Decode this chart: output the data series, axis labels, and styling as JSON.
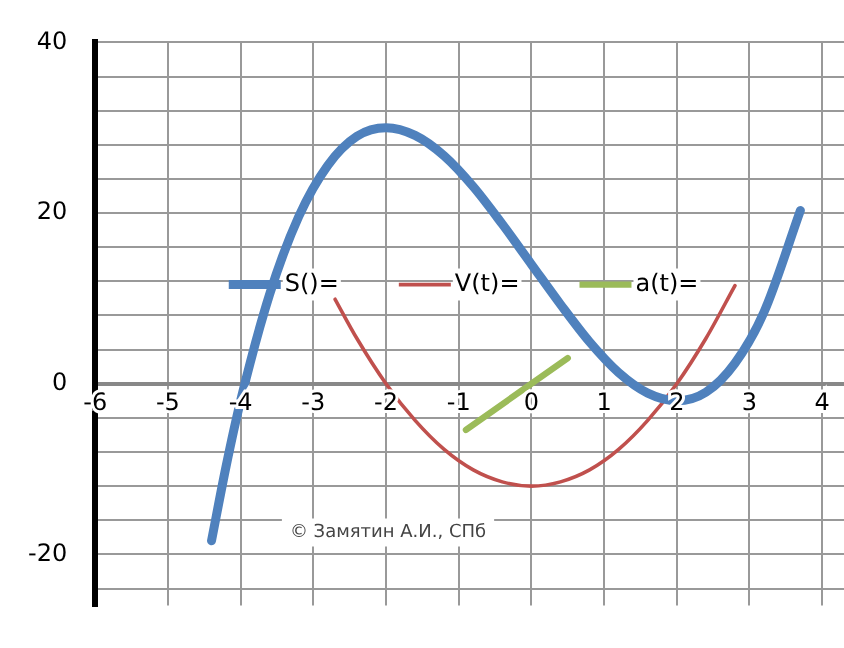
{
  "chart_data": {
    "type": "line",
    "xlim": [
      -6,
      4.3
    ],
    "ylim": [
      -26,
      40
    ],
    "xticks": [
      -6,
      -5,
      -4,
      -3,
      -2,
      -1,
      0,
      1,
      2,
      3,
      4
    ],
    "yticks": [
      {
        "value": -24,
        "label": null
      },
      -20,
      {
        "value": -16,
        "label": null
      },
      {
        "value": -12,
        "label": null
      },
      {
        "value": -8,
        "label": null
      },
      {
        "value": -4,
        "label": null
      },
      0,
      {
        "value": 4,
        "label": null
      },
      {
        "value": 8,
        "label": null
      },
      {
        "value": 12,
        "label": null
      },
      {
        "value": 16,
        "label": null
      },
      20,
      {
        "value": 24,
        "label": null
      },
      {
        "value": 28,
        "label": null
      },
      {
        "value": 32,
        "label": null
      },
      {
        "value": 36,
        "label": null
      },
      40
    ],
    "grid": true,
    "legend": "center",
    "marker": "none",
    "line_style": "solid",
    "series": [
      {
        "name": "S()=",
        "color": "#4f81bd",
        "x": [
          -4.4,
          -4.2,
          -4,
          -3.6,
          -3.2,
          -2.8,
          -2.4,
          -2,
          -1.6,
          -1.2,
          -0.8,
          -0.4,
          0,
          0.4,
          0.8,
          1.2,
          1.6,
          2,
          2.4,
          2.8,
          3.2,
          3.7
        ],
        "values": [
          -18.4,
          -9.7,
          -2,
          10.5,
          19.6,
          25.6,
          29,
          30,
          29.1,
          26.7,
          23.1,
          18.7,
          14,
          9.3,
          4.9,
          1.3,
          -1.1,
          -2,
          -1,
          2.4,
          8.4,
          20.3
        ]
      },
      {
        "name": "V(t)=",
        "color": "#c0504d",
        "x": [
          -2.7,
          -2.4,
          -2,
          -1.6,
          -1.2,
          -0.8,
          -0.4,
          0,
          0.4,
          0.8,
          1.2,
          1.6,
          2,
          2.4,
          2.8
        ],
        "values": [
          9.9,
          5.3,
          0,
          -4.3,
          -7.7,
          -10.1,
          -11.5,
          -12,
          -11.5,
          -10.1,
          -7.7,
          -4.3,
          0,
          5.3,
          11.5
        ]
      },
      {
        "name": "a(t)=",
        "color": "#9bbb59",
        "x": [
          -0.9,
          0.5
        ],
        "values": [
          -5.4,
          3
        ]
      }
    ],
    "annotations": [
      "© Замятин А.И., СПб"
    ]
  }
}
